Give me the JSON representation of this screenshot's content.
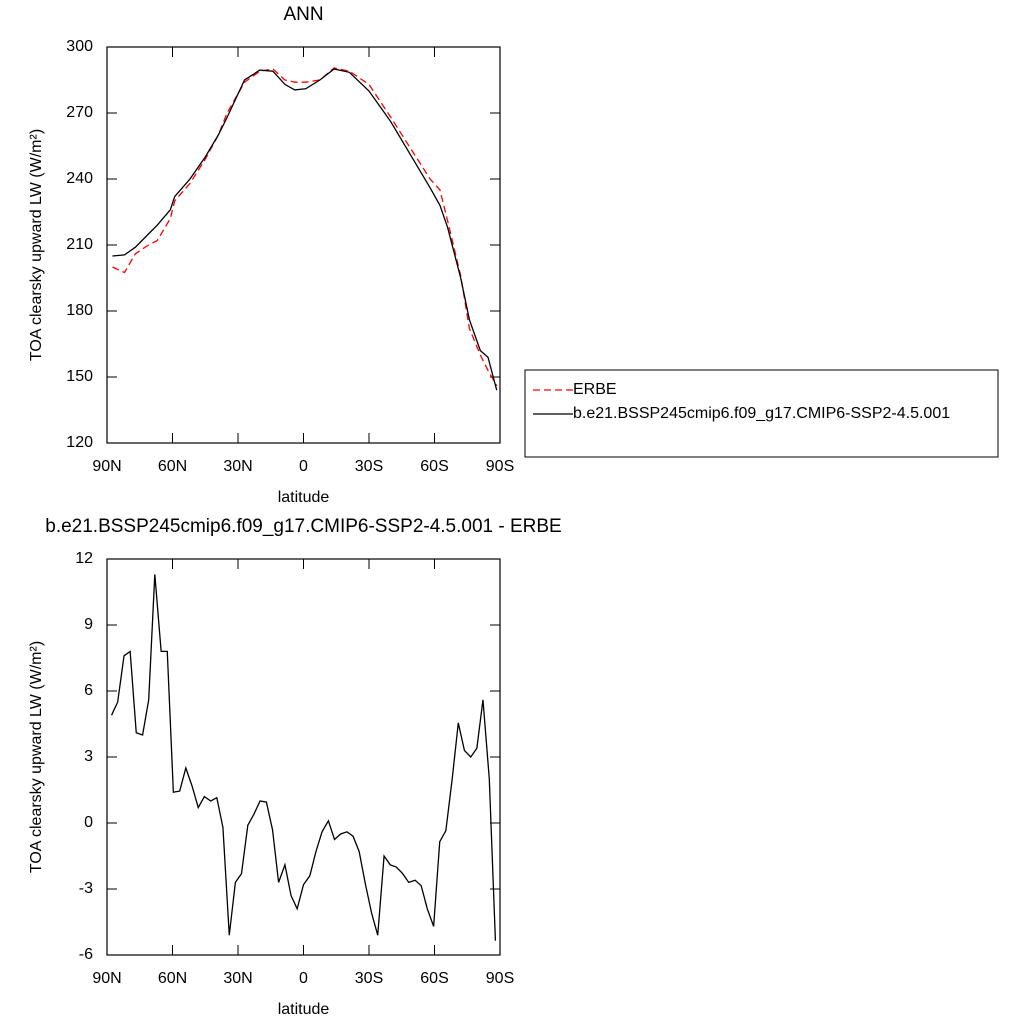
{
  "chart_data": [
    {
      "type": "line",
      "title": "ANN",
      "x_label": "latitude",
      "y_label": "TOA clearsky upward LW (W/m²)",
      "x": [
        87.5,
        82,
        77,
        71,
        67,
        61,
        59,
        52,
        45,
        39,
        35,
        27,
        20,
        14,
        8.5,
        4,
        -1,
        -7.5,
        -14,
        -21,
        -30,
        -40,
        -49,
        -58,
        -62.5,
        -66,
        -72,
        -76,
        -81,
        -84.5,
        -88.5
      ],
      "series": [
        {
          "name": "ERBE",
          "color": "#ff0000",
          "dash": true,
          "values": [
            200,
            197.5,
            206,
            210,
            212,
            222,
            230,
            238,
            249,
            260,
            270,
            284,
            289,
            290,
            285,
            284,
            284,
            285,
            290.5,
            289,
            283,
            268,
            254,
            240,
            235,
            221,
            196,
            172,
            160,
            153,
            146
          ]
        },
        {
          "name": "b.e21.BSSP245cmip6.f09_g17.CMIP6-SSP2-4.5.001",
          "color": "#000000",
          "dash": false,
          "values": [
            205,
            205.5,
            209,
            215,
            219,
            226,
            232,
            240,
            250,
            260,
            268,
            285,
            289.5,
            289,
            283,
            280.5,
            281,
            285,
            290,
            288.5,
            280,
            266,
            251,
            236,
            228,
            218,
            195,
            176,
            162,
            159,
            144
          ]
        }
      ],
      "xlim": [
        90,
        -90
      ],
      "xticks": [
        {
          "value": 90,
          "label": "90N"
        },
        {
          "value": 60,
          "label": "60N"
        },
        {
          "value": 30,
          "label": "30N"
        },
        0,
        {
          "value": -30,
          "label": "30S"
        },
        {
          "value": -60,
          "label": "60S"
        },
        {
          "value": -90,
          "label": "90S"
        }
      ],
      "ylim": [
        120,
        300
      ],
      "yticks": [
        120,
        150,
        180,
        210,
        240,
        270,
        300
      ],
      "legend": "right"
    },
    {
      "type": "line",
      "title": "b.e21.BSSP245cmip6.f09_g17.CMIP6-SSP2-4.5.001 - ERBE",
      "x_label": "latitude",
      "y_label": "TOA clearsky upward LW (W/m²)",
      "x": [
        87.9,
        85.1,
        82.2,
        79.4,
        76.6,
        73.7,
        70.9,
        68.1,
        65.2,
        62.4,
        59.6,
        56.7,
        53.9,
        51.1,
        48.2,
        45.4,
        42.5,
        39.7,
        36.9,
        34.0,
        31.2,
        28.4,
        25.5,
        22.7,
        19.9,
        17.0,
        14.2,
        11.4,
        8.5,
        5.7,
        2.9,
        0.0,
        -2.9,
        -5.7,
        -8.5,
        -11.4,
        -14.2,
        -17.0,
        -19.9,
        -22.7,
        -25.5,
        -28.4,
        -31.2,
        -34.0,
        -36.9,
        -39.7,
        -42.5,
        -45.4,
        -48.2,
        -51.1,
        -53.9,
        -56.7,
        -59.6,
        -62.4,
        -65.2,
        -68.1,
        -70.9,
        -73.7,
        -76.6,
        -79.4,
        -82.2,
        -85.1,
        -87.9
      ],
      "series": [
        {
          "color": "#000000",
          "values": [
            4.9,
            5.5,
            7.6,
            7.8,
            4.1,
            4.0,
            5.6,
            11.3,
            7.8,
            7.8,
            1.4,
            1.45,
            2.5,
            1.7,
            0.7,
            1.2,
            1.0,
            1.15,
            -0.2,
            -5.1,
            -2.7,
            -2.3,
            -0.1,
            0.4,
            1.0,
            0.95,
            -0.3,
            -2.7,
            -1.9,
            -3.3,
            -3.9,
            -2.8,
            -2.4,
            -1.3,
            -0.4,
            0.1,
            -0.75,
            -0.5,
            -0.4,
            -0.6,
            -1.3,
            -2.8,
            -4.1,
            -5.1,
            -1.5,
            -1.9,
            -2.0,
            -2.3,
            -2.7,
            -2.6,
            -2.85,
            -3.9,
            -4.7,
            -0.85,
            -0.35,
            2.0,
            4.55,
            3.3,
            3.0,
            3.4,
            5.6,
            2.0,
            -5.35
          ]
        }
      ],
      "xlim": [
        90,
        -90
      ],
      "xticks": [
        {
          "value": 90,
          "label": "90N"
        },
        {
          "value": 60,
          "label": "60N"
        },
        {
          "value": 30,
          "label": "30N"
        },
        0,
        {
          "value": -30,
          "label": "30S"
        },
        {
          "value": -60,
          "label": "60S"
        },
        {
          "value": -90,
          "label": "90S"
        }
      ],
      "ylim": [
        -6,
        12
      ],
      "yticks": [
        -6,
        -3,
        0,
        3,
        6,
        9,
        12
      ]
    }
  ]
}
